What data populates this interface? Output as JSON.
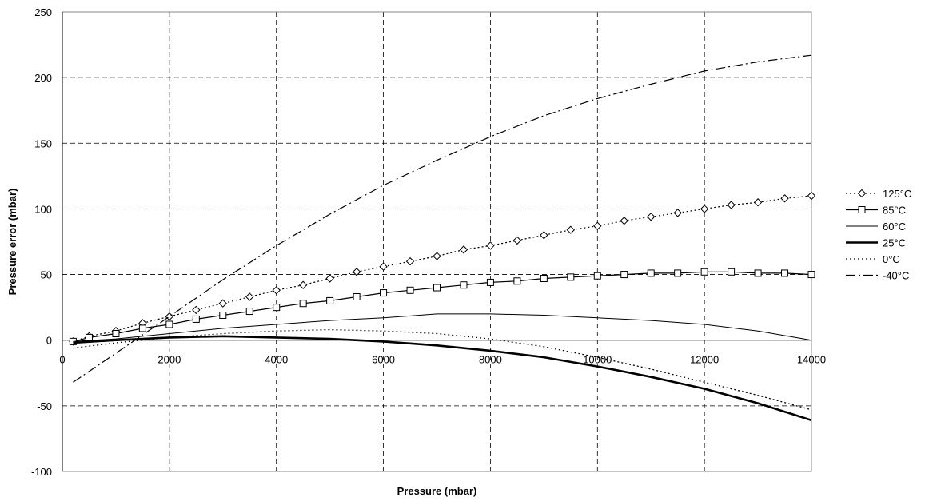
{
  "chart_data": {
    "type": "line",
    "title": "",
    "xlabel": "Pressure (mbar)",
    "ylabel": "Pressure error (mbar)",
    "xlim": [
      0,
      14000
    ],
    "ylim": [
      -100,
      250
    ],
    "x_ticks": [
      0,
      2000,
      4000,
      6000,
      8000,
      10000,
      12000,
      14000
    ],
    "x_tick_labels": [
      "0",
      "2000",
      "4000",
      "6000",
      "8000",
      "10000",
      "12000",
      "14000"
    ],
    "y_ticks": [
      -100,
      -50,
      0,
      50,
      100,
      150,
      200,
      250
    ],
    "y_tick_labels": [
      "-100",
      "-50",
      "0",
      "50",
      "100",
      "150",
      "200",
      "250"
    ],
    "grid": "dashed",
    "legend_position": "right",
    "series": [
      {
        "name": "125°C",
        "style": "dotted-diamond",
        "points": [
          [
            200,
            -1
          ],
          [
            500,
            3
          ],
          [
            1000,
            7
          ],
          [
            1500,
            13
          ],
          [
            2000,
            18
          ],
          [
            2500,
            23
          ],
          [
            3000,
            28
          ],
          [
            3500,
            33
          ],
          [
            4000,
            38
          ],
          [
            4500,
            42
          ],
          [
            5000,
            47
          ],
          [
            5500,
            52
          ],
          [
            6000,
            56
          ],
          [
            6500,
            60
          ],
          [
            7000,
            64
          ],
          [
            7500,
            69
          ],
          [
            8000,
            72
          ],
          [
            8500,
            76
          ],
          [
            9000,
            80
          ],
          [
            9500,
            84
          ],
          [
            10000,
            87
          ],
          [
            10500,
            91
          ],
          [
            11000,
            94
          ],
          [
            11500,
            97
          ],
          [
            12000,
            100
          ],
          [
            12500,
            103
          ],
          [
            13000,
            105
          ],
          [
            13500,
            108
          ],
          [
            14000,
            110
          ]
        ]
      },
      {
        "name": "85°C",
        "style": "solid-square",
        "points": [
          [
            200,
            -1
          ],
          [
            500,
            2
          ],
          [
            1000,
            5
          ],
          [
            1500,
            9
          ],
          [
            2000,
            12
          ],
          [
            2500,
            16
          ],
          [
            3000,
            19
          ],
          [
            3500,
            22
          ],
          [
            4000,
            25
          ],
          [
            4500,
            28
          ],
          [
            5000,
            30
          ],
          [
            5500,
            33
          ],
          [
            6000,
            36
          ],
          [
            6500,
            38
          ],
          [
            7000,
            40
          ],
          [
            7500,
            42
          ],
          [
            8000,
            44
          ],
          [
            8500,
            45
          ],
          [
            9000,
            47
          ],
          [
            9500,
            48
          ],
          [
            10000,
            49
          ],
          [
            10500,
            50
          ],
          [
            11000,
            51
          ],
          [
            11500,
            51
          ],
          [
            12000,
            52
          ],
          [
            12500,
            52
          ],
          [
            13000,
            51
          ],
          [
            13500,
            51
          ],
          [
            14000,
            50
          ]
        ]
      },
      {
        "name": "60°C",
        "style": "solid-thin",
        "points": [
          [
            200,
            -1
          ],
          [
            1000,
            1
          ],
          [
            2000,
            5
          ],
          [
            3000,
            9
          ],
          [
            4000,
            12
          ],
          [
            5000,
            15
          ],
          [
            6000,
            17
          ],
          [
            7000,
            20
          ],
          [
            8000,
            20
          ],
          [
            9000,
            19
          ],
          [
            10000,
            17
          ],
          [
            11000,
            15
          ],
          [
            12000,
            12
          ],
          [
            13000,
            7
          ],
          [
            14000,
            0
          ]
        ]
      },
      {
        "name": "25°C",
        "style": "solid-thick",
        "points": [
          [
            200,
            -2
          ],
          [
            1000,
            0
          ],
          [
            2000,
            2
          ],
          [
            3000,
            3
          ],
          [
            4000,
            2
          ],
          [
            5000,
            1
          ],
          [
            6000,
            -1
          ],
          [
            7000,
            -4
          ],
          [
            8000,
            -8
          ],
          [
            9000,
            -13
          ],
          [
            10000,
            -20
          ],
          [
            11000,
            -28
          ],
          [
            12000,
            -37
          ],
          [
            13000,
            -48
          ],
          [
            14000,
            -61
          ]
        ]
      },
      {
        "name": "0°C",
        "style": "dotted",
        "points": [
          [
            200,
            -6
          ],
          [
            1000,
            -2
          ],
          [
            2000,
            2
          ],
          [
            3000,
            5
          ],
          [
            4000,
            7
          ],
          [
            5000,
            8
          ],
          [
            6000,
            7
          ],
          [
            7000,
            5
          ],
          [
            8000,
            1
          ],
          [
            9000,
            -5
          ],
          [
            10000,
            -13
          ],
          [
            11000,
            -22
          ],
          [
            12000,
            -32
          ],
          [
            13000,
            -42
          ],
          [
            14000,
            -53
          ]
        ]
      },
      {
        "name": "-40°C",
        "style": "dash-dot",
        "points": [
          [
            200,
            -32
          ],
          [
            1000,
            -10
          ],
          [
            2000,
            18
          ],
          [
            3000,
            46
          ],
          [
            4000,
            72
          ],
          [
            5000,
            96
          ],
          [
            6000,
            118
          ],
          [
            7000,
            137
          ],
          [
            8000,
            155
          ],
          [
            9000,
            171
          ],
          [
            10000,
            184
          ],
          [
            11000,
            195
          ],
          [
            12000,
            205
          ],
          [
            13000,
            212
          ],
          [
            14000,
            217
          ]
        ]
      }
    ]
  }
}
